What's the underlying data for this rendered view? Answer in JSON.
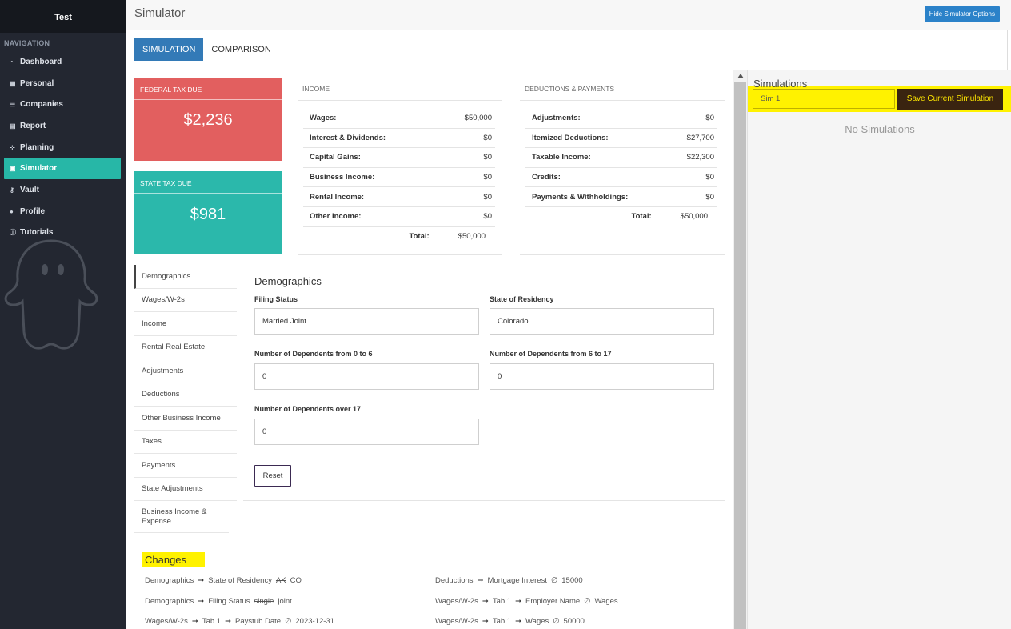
{
  "sidebar": {
    "brand": "Test",
    "nav_title": "NAVIGATION",
    "items": [
      {
        "label": "Dashboard",
        "icon": "dashboard-icon"
      },
      {
        "label": "Personal",
        "icon": "table-icon"
      },
      {
        "label": "Companies",
        "icon": "list-icon"
      },
      {
        "label": "Report",
        "icon": "file-icon"
      },
      {
        "label": "Planning",
        "icon": "sitemap-icon"
      },
      {
        "label": "Simulator",
        "icon": "calculator-icon",
        "active": true
      },
      {
        "label": "Vault",
        "icon": "key-icon"
      },
      {
        "label": "Profile",
        "icon": "user-icon"
      },
      {
        "label": "Tutorials",
        "icon": "info-icon"
      }
    ]
  },
  "header": {
    "title": "Simulator",
    "hide_button": "Hide Simulator Options"
  },
  "tabs": [
    "SIMULATION",
    "COMPARISON"
  ],
  "federal": {
    "label": "FEDERAL TAX DUE",
    "value": "$2,236"
  },
  "state_tax": {
    "label": "STATE TAX DUE",
    "value": "$981"
  },
  "income": {
    "title": "INCOME",
    "rows": [
      {
        "label": "Wages:",
        "value": "$50,000"
      },
      {
        "label": "Interest & Dividends:",
        "value": "$0"
      },
      {
        "label": "Capital Gains:",
        "value": "$0"
      },
      {
        "label": "Business Income:",
        "value": "$0"
      },
      {
        "label": "Rental Income:",
        "value": "$0"
      },
      {
        "label": "Other Income:",
        "value": "$0"
      }
    ],
    "total_label": "Total:",
    "total_value": "$50,000"
  },
  "deductions": {
    "title": "DEDUCTIONS & PAYMENTS",
    "rows": [
      {
        "label": "Adjustments:",
        "value": "$0"
      },
      {
        "label": "Itemized Deductions:",
        "value": "$27,700"
      },
      {
        "label": "Taxable Income:",
        "value": "$22,300"
      },
      {
        "label": "Credits:",
        "value": "$0"
      },
      {
        "label": "Payments & Withholdings:",
        "value": "$0"
      }
    ],
    "total_label": "Total:",
    "total_value": "$50,000"
  },
  "submenu": [
    "Demographics",
    "Wages/W-2s",
    "Income",
    "Rental Real Estate",
    "Adjustments",
    "Deductions",
    "Other Business Income",
    "Taxes",
    "Payments",
    "State Adjustments",
    "Business Income & Expense"
  ],
  "form": {
    "title": "Demographics",
    "filing_status_label": "Filing Status",
    "filing_status_value": "Married Joint",
    "state_label": "State of Residency",
    "state_value": "Colorado",
    "dep_0_6_label": "Number of Dependents from 0 to 6",
    "dep_0_6_value": "0",
    "dep_6_17_label": "Number of Dependents from 6 to 17",
    "dep_6_17_value": "0",
    "dep_over_17_label": "Number of Dependents over 17",
    "dep_over_17_value": "0",
    "reset_label": "Reset"
  },
  "changes": {
    "title": "Changes",
    "left": [
      {
        "path": [
          "Demographics",
          "State of Residency"
        ],
        "old": "AK",
        "new": "CO"
      },
      {
        "path": [
          "Demographics",
          "Filing Status"
        ],
        "old": "single",
        "new": "joint"
      },
      {
        "path": [
          "Wages/W-2s",
          "Tab 1",
          "Paystub Date"
        ],
        "old": "∅",
        "new": "2023-12-31"
      }
    ],
    "right": [
      {
        "path": [
          "Deductions",
          "Mortgage Interest"
        ],
        "old": "∅",
        "new": "15000"
      },
      {
        "path": [
          "Wages/W-2s",
          "Tab 1",
          "Employer Name"
        ],
        "old": "∅",
        "new": "Wages"
      },
      {
        "path": [
          "Wages/W-2s",
          "Tab 1",
          "Wages"
        ],
        "old": "∅",
        "new": "50000"
      }
    ]
  },
  "simulations": {
    "title": "Simulations",
    "input_value": "Sim 1",
    "save_button": "Save Current Simulation",
    "empty_text": "No Simulations"
  },
  "colors": {
    "federal": "#e25f5f",
    "state": "#2bb8ab",
    "accent": "#27b7a7",
    "primary": "#337ab7",
    "highlight": "#fff200"
  }
}
